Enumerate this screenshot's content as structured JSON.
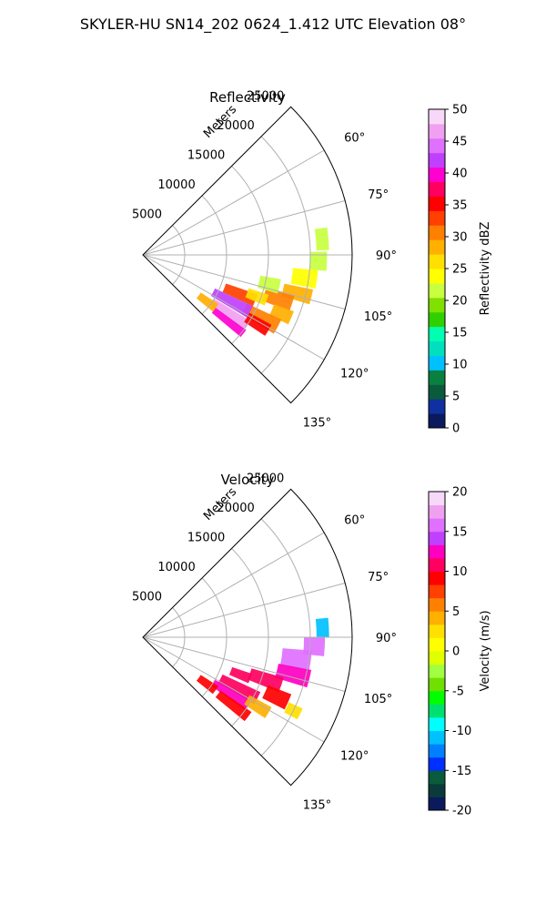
{
  "figure": {
    "suptitle": "SKYLER-HU  SN14_202  0624_1.412 UTC Elevation 08°"
  },
  "chart_data": [
    {
      "type": "polar-sector",
      "title": "Reflectivity",
      "radial_label": "Meters",
      "r_ticks": [
        5000,
        10000,
        15000,
        20000,
        25000
      ],
      "r_max": 25000,
      "theta_ticks": [
        "60°",
        "75°",
        "90°",
        "105°",
        "120°",
        "135°"
      ],
      "theta_range_deg": [
        45,
        135
      ],
      "colorbar": {
        "label": "Reflectivity dBZ",
        "ticks": [
          0,
          5,
          10,
          15,
          20,
          25,
          30,
          35,
          40,
          45,
          50
        ],
        "range": [
          0,
          50
        ],
        "colors": [
          "#0a1a5c",
          "#1030a0",
          "#0a5a3c",
          "#0a8040",
          "#00c0ff",
          "#00e0c0",
          "#00ffb0",
          "#30d000",
          "#80e000",
          "#c8ff40",
          "#ffff00",
          "#ffe000",
          "#ffb000",
          "#ff8000",
          "#ff4000",
          "#ff0000",
          "#ff0060",
          "#ff00d0",
          "#c040ff",
          "#e070ff",
          "#f0a0f0",
          "#f8d8f8"
        ]
      },
      "echo_cells": [
        {
          "az": 85,
          "r": 21500,
          "dr": 1500,
          "daz": 7,
          "value": 22
        },
        {
          "az": 92,
          "r": 21000,
          "dr": 2000,
          "daz": 6,
          "value": 21
        },
        {
          "az": 98,
          "r": 19500,
          "dr": 3000,
          "daz": 6,
          "value": 24
        },
        {
          "az": 104,
          "r": 19000,
          "dr": 3500,
          "daz": 5,
          "value": 28
        },
        {
          "az": 108,
          "r": 17000,
          "dr": 3500,
          "daz": 6,
          "value": 30
        },
        {
          "az": 113,
          "r": 18000,
          "dr": 2500,
          "daz": 5,
          "value": 29
        },
        {
          "az": 118,
          "r": 16000,
          "dr": 4500,
          "daz": 6,
          "value": 31
        },
        {
          "az": 112,
          "r": 12500,
          "dr": 4000,
          "daz": 6,
          "value": 34
        },
        {
          "az": 118,
          "r": 12000,
          "dr": 5000,
          "daz": 6,
          "value": 42
        },
        {
          "az": 124,
          "r": 12500,
          "dr": 5000,
          "daz": 5,
          "value": 46
        },
        {
          "az": 128,
          "r": 13000,
          "dr": 4500,
          "daz": 4,
          "value": 40
        },
        {
          "az": 121,
          "r": 16000,
          "dr": 3000,
          "daz": 5,
          "value": 36
        },
        {
          "az": 110,
          "r": 14500,
          "dr": 2500,
          "daz": 5,
          "value": 25
        },
        {
          "az": 103,
          "r": 15500,
          "dr": 2500,
          "daz": 6,
          "value": 22
        },
        {
          "az": 126,
          "r": 9500,
          "dr": 2500,
          "daz": 6,
          "value": 28
        }
      ]
    },
    {
      "type": "polar-sector",
      "title": "Velocity",
      "radial_label": "Meters",
      "r_ticks": [
        5000,
        10000,
        15000,
        20000,
        25000
      ],
      "r_max": 25000,
      "theta_ticks": [
        "60°",
        "75°",
        "90°",
        "105°",
        "120°",
        "135°"
      ],
      "theta_range_deg": [
        45,
        135
      ],
      "colorbar": {
        "label": "Velocity (m/s)",
        "ticks": [
          -20,
          -15,
          -10,
          -5,
          0,
          5,
          10,
          15,
          20
        ],
        "range": [
          -20,
          20
        ],
        "colors": [
          "#0a1a5c",
          "#0a3a3a",
          "#0a5a3c",
          "#0030ff",
          "#0080ff",
          "#00c0ff",
          "#00ffff",
          "#00e070",
          "#00ff00",
          "#70e000",
          "#a0ff40",
          "#e0ff00",
          "#ffff00",
          "#ffe000",
          "#ffb000",
          "#ff8000",
          "#ff4000",
          "#ff0000",
          "#ff0060",
          "#ff00c0",
          "#c040ff",
          "#e070ff",
          "#f0a0f0",
          "#f8d8f8"
        ]
      },
      "echo_cells": [
        {
          "az": 87,
          "r": 21500,
          "dr": 1500,
          "daz": 6,
          "value": -11
        },
        {
          "az": 93,
          "r": 20500,
          "dr": 2500,
          "daz": 6,
          "value": 15
        },
        {
          "az": 98,
          "r": 18500,
          "dr": 3500,
          "daz": 7,
          "value": 16
        },
        {
          "az": 104,
          "r": 18500,
          "dr": 4000,
          "daz": 6,
          "value": 13
        },
        {
          "az": 109,
          "r": 15500,
          "dr": 4000,
          "daz": 6,
          "value": 11
        },
        {
          "az": 114,
          "r": 17500,
          "dr": 3000,
          "daz": 6,
          "value": 9
        },
        {
          "az": 118,
          "r": 13000,
          "dr": 5000,
          "daz": 6,
          "value": 10
        },
        {
          "az": 123,
          "r": 12500,
          "dr": 5000,
          "daz": 5,
          "value": 12
        },
        {
          "az": 127,
          "r": 13500,
          "dr": 4500,
          "daz": 5,
          "value": 9
        },
        {
          "az": 121,
          "r": 16000,
          "dr": 3000,
          "daz": 5,
          "value": 4
        },
        {
          "az": 111,
          "r": 12500,
          "dr": 2500,
          "daz": 5,
          "value": 11
        },
        {
          "az": 126,
          "r": 9500,
          "dr": 2500,
          "daz": 6,
          "value": 9
        },
        {
          "az": 116,
          "r": 20000,
          "dr": 1800,
          "daz": 4,
          "value": 2
        }
      ]
    }
  ]
}
